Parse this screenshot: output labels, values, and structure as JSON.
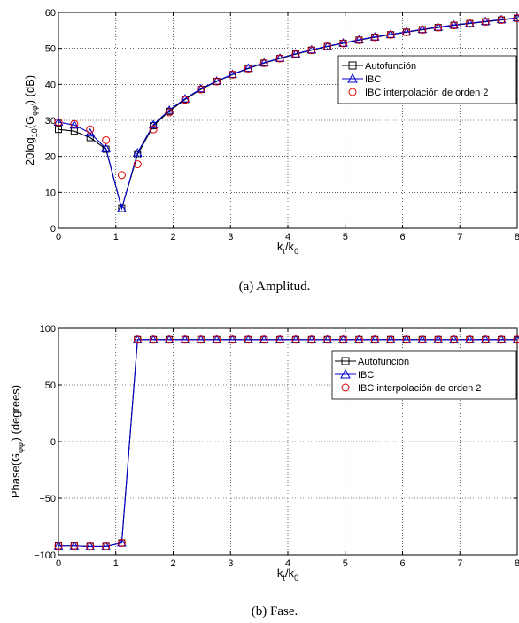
{
  "colors": {
    "autofuncion": "#000000",
    "ibc": "#0000cc",
    "ibc2": "#dd0000",
    "grid": "#000000"
  },
  "chart_data": [
    {
      "type": "line",
      "caption": "(a) Amplitud.",
      "ylabel": {
        "pre": "20log",
        "sub1": "10",
        "mid": "(G",
        "sub2": "φφ'",
        "post": ") (dB)"
      },
      "xlabel": {
        "k": "k",
        "s1": "t",
        "slash": "/k",
        "s2": "0"
      },
      "xlim": [
        0,
        8
      ],
      "ylim": [
        0,
        60
      ],
      "xticks": [
        "0",
        "1",
        "2",
        "3",
        "4",
        "5",
        "6",
        "7",
        "8"
      ],
      "yticks": [
        "0",
        "10",
        "20",
        "30",
        "40",
        "50",
        "60"
      ],
      "yticks_values": [
        0,
        10,
        20,
        30,
        40,
        50,
        60
      ],
      "grid": true,
      "legend_placement": "top-right",
      "legend": [
        "Autofunción",
        "IBC",
        "IBC interpolación de orden 2"
      ],
      "x": [
        0,
        0.276,
        0.552,
        0.828,
        1.103,
        1.379,
        1.655,
        1.931,
        2.207,
        2.483,
        2.759,
        3.034,
        3.31,
        3.586,
        3.862,
        4.138,
        4.414,
        4.69,
        4.966,
        5.241,
        5.517,
        5.793,
        6.069,
        6.345,
        6.621,
        6.897,
        7.172,
        7.448,
        7.724,
        8.0
      ],
      "series": [
        {
          "name": "Autofunción",
          "marker": "square",
          "values": [
            27.5,
            27,
            25.2,
            22,
            5.5,
            20.5,
            28.5,
            32.5,
            35.8,
            38.6,
            40.8,
            42.7,
            44.4,
            45.9,
            47.2,
            48.4,
            49.5,
            50.5,
            51.4,
            52.3,
            53.1,
            53.8,
            54.5,
            55.2,
            55.8,
            56.4,
            56.9,
            57.4,
            57.9,
            58.4
          ]
        },
        {
          "name": "IBC",
          "marker": "triangle",
          "values": [
            29.5,
            28.7,
            26.5,
            22.2,
            5.5,
            21,
            28.8,
            32.8,
            36,
            38.8,
            40.9,
            42.8,
            44.5,
            46,
            47.3,
            48.5,
            49.6,
            50.6,
            51.5,
            52.4,
            53.2,
            53.9,
            54.6,
            55.3,
            55.9,
            56.5,
            57,
            57.5,
            58,
            58.5
          ]
        },
        {
          "name": "IBC interpolación de orden 2",
          "marker": "circle",
          "connect": false,
          "values": [
            29.5,
            29,
            27.5,
            24.5,
            14.8,
            17.8,
            27.5,
            32.2,
            35.7,
            38.6,
            40.8,
            42.7,
            44.4,
            45.9,
            47.2,
            48.4,
            49.5,
            50.5,
            51.4,
            52.3,
            53.1,
            53.8,
            54.5,
            55.2,
            55.8,
            56.4,
            56.9,
            57.4,
            57.9,
            58.4
          ]
        }
      ]
    },
    {
      "type": "line",
      "caption": "(b) Fase.",
      "ylabel": {
        "pre": "Phase(G",
        "sub1": "",
        "mid": "",
        "sub2": "φφ'",
        "post": ") (degrees)"
      },
      "xlabel": {
        "k": "k",
        "s1": "t",
        "slash": "/k",
        "s2": "0"
      },
      "xlim": [
        0,
        8
      ],
      "ylim": [
        -100,
        100
      ],
      "xticks": [
        "0",
        "1",
        "2",
        "3",
        "4",
        "5",
        "6",
        "7",
        "8"
      ],
      "yticks": [
        "−100",
        "−50",
        "0",
        "50",
        "100"
      ],
      "yticks_values": [
        -100,
        -50,
        0,
        50,
        100
      ],
      "grid": true,
      "legend_placement": "top-right",
      "legend": [
        "Autofunción",
        "IBC",
        "IBC interpolación de orden 2"
      ],
      "x": [
        0,
        0.276,
        0.552,
        0.828,
        1.103,
        1.379,
        1.655,
        1.931,
        2.207,
        2.483,
        2.759,
        3.034,
        3.31,
        3.586,
        3.862,
        4.138,
        4.414,
        4.69,
        4.966,
        5.241,
        5.517,
        5.793,
        6.069,
        6.345,
        6.621,
        6.897,
        7.172,
        7.448,
        7.724,
        8.0
      ],
      "series": [
        {
          "name": "Autofunción",
          "marker": "square",
          "values": [
            -92,
            -92,
            -92.5,
            -92.5,
            -89.5,
            90,
            90,
            90,
            90,
            90,
            90,
            90,
            90,
            90,
            90,
            90,
            90,
            90,
            90,
            90,
            90,
            90,
            90,
            90,
            90,
            90,
            90,
            90,
            90,
            90
          ]
        },
        {
          "name": "IBC",
          "marker": "triangle",
          "values": [
            -92,
            -92,
            -92.5,
            -92.5,
            -89.5,
            90,
            90,
            90,
            90,
            90,
            90,
            90,
            90,
            90,
            90,
            90,
            90,
            90,
            90,
            90,
            90,
            90,
            90,
            90,
            90,
            90,
            90,
            90,
            90,
            90
          ]
        },
        {
          "name": "IBC interpolación de orden 2",
          "marker": "circle",
          "connect": false,
          "values": [
            -92,
            -92,
            -92.5,
            -92.5,
            -89.5,
            90,
            90,
            90,
            90,
            90,
            90,
            90,
            90,
            90,
            90,
            90,
            90,
            90,
            90,
            90,
            90,
            90,
            90,
            90,
            90,
            90,
            90,
            90,
            90,
            90
          ]
        }
      ]
    }
  ]
}
